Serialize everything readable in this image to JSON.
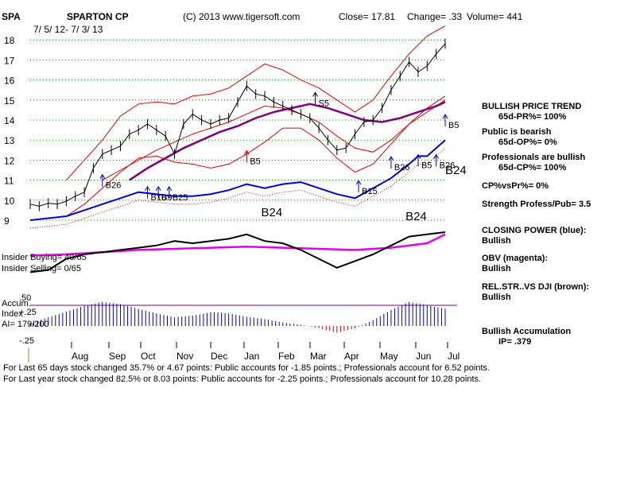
{
  "header": {
    "ticker": "SPA",
    "company": "SPARTON CP",
    "copyright": "(C) 2013 www.tigersoft.com",
    "close": "Close=  17.81",
    "change": "Change= .33",
    "volume": "Volume= 441",
    "date_range": "7/ 5/ 12- 7/ 3/ 13"
  },
  "left_labels": {
    "insider_buying": "Insider Buying= 40/65",
    "insider_selling": "Insider Selling= 0/65",
    "accum_label": "Accum.",
    "index_label": "Index",
    "ai": "AI= 179/200"
  },
  "right_panel": {
    "trend_title": "BULLISH PRICE TREND",
    "pr": "65d-PR%= 100%",
    "public": "Public is bearish",
    "op": "65d-OP%= 0%",
    "professionals": "Professionals are bullish",
    "cp": "65d-CP%= 100%",
    "cp_vs_pr": "CP%vsPr%=  0%",
    "strength": "Strength Profess/Pub= 3.5",
    "closing_power": "CLOSING POWER (blue):",
    "closing_power_val": "Bullish",
    "obv": "OBV (magenta):",
    "obv_val": "Bullish",
    "relstr": "REL.STR..VS DJI (brown):",
    "relstr_val": "Bullish",
    "accum": "Bullish Accumulation",
    "ip": "IP=  .379"
  },
  "footer": {
    "line1": "For Last 65 days stock changed  35.7% or  4.67 points:  Public accounts for -1.85 points.;  Professionals account for  6.52 points.",
    "line2": "For Last year stock changed  82.5% or  8.03 points:  Public accounts for -2.25 points.;  Professionals account for  10.28 points."
  },
  "colors": {
    "price": "#000000",
    "band": "#e60000",
    "ma": "#800080",
    "closing_power": "#0000e6",
    "obv": "#e600e6",
    "relstr": "#000000",
    "accumulation": "#0000cc",
    "buy_signal": "#0000cc",
    "sell_signal": "#cc0000",
    "grid": "#008000"
  },
  "chart_data": {
    "type": "line",
    "title": "SPARTON CP",
    "price_axis": {
      "ticks": [
        9,
        10,
        11,
        12,
        13,
        14,
        15,
        16,
        17,
        18
      ],
      "ylim": [
        8.6,
        18.6
      ]
    },
    "months": [
      "Aug",
      "Sep",
      "Oct",
      "Nov",
      "Dec",
      "Jan",
      "Feb",
      "Mar",
      "Apr",
      "May",
      "Jun",
      "Jul"
    ],
    "accum_axis": {
      "ticks": [
        ".50",
        "+.25",
        "-.25"
      ],
      "ylim": [
        -0.3,
        0.55
      ]
    },
    "price_series": [
      {
        "x": 0,
        "y": 9.8
      },
      {
        "x": 5,
        "y": 9.7
      },
      {
        "x": 10,
        "y": 9.85
      },
      {
        "x": 15,
        "y": 9.8
      },
      {
        "x": 20,
        "y": 9.95
      },
      {
        "x": 25,
        "y": 10.2
      },
      {
        "x": 30,
        "y": 10.4
      },
      {
        "x": 35,
        "y": 11.6
      },
      {
        "x": 40,
        "y": 12.3
      },
      {
        "x": 45,
        "y": 12.5
      },
      {
        "x": 50,
        "y": 12.7
      },
      {
        "x": 55,
        "y": 13.3
      },
      {
        "x": 60,
        "y": 13.5
      },
      {
        "x": 65,
        "y": 13.8
      },
      {
        "x": 70,
        "y": 13.5
      },
      {
        "x": 75,
        "y": 13.2
      },
      {
        "x": 80,
        "y": 12.3
      },
      {
        "x": 85,
        "y": 13.8
      },
      {
        "x": 90,
        "y": 14.3
      },
      {
        "x": 95,
        "y": 14.0
      },
      {
        "x": 100,
        "y": 13.8
      },
      {
        "x": 105,
        "y": 14.0
      },
      {
        "x": 110,
        "y": 14.1
      },
      {
        "x": 115,
        "y": 14.9
      },
      {
        "x": 120,
        "y": 15.7
      },
      {
        "x": 125,
        "y": 15.3
      },
      {
        "x": 130,
        "y": 15.2
      },
      {
        "x": 135,
        "y": 14.9
      },
      {
        "x": 140,
        "y": 14.7
      },
      {
        "x": 145,
        "y": 14.5
      },
      {
        "x": 150,
        "y": 14.3
      },
      {
        "x": 155,
        "y": 14.1
      },
      {
        "x": 160,
        "y": 13.6
      },
      {
        "x": 165,
        "y": 13.0
      },
      {
        "x": 170,
        "y": 12.5
      },
      {
        "x": 175,
        "y": 12.6
      },
      {
        "x": 180,
        "y": 13.3
      },
      {
        "x": 185,
        "y": 13.9
      },
      {
        "x": 190,
        "y": 14.0
      },
      {
        "x": 195,
        "y": 14.6
      },
      {
        "x": 200,
        "y": 15.5
      },
      {
        "x": 205,
        "y": 16.2
      },
      {
        "x": 210,
        "y": 16.9
      },
      {
        "x": 215,
        "y": 16.4
      },
      {
        "x": 220,
        "y": 16.7
      },
      {
        "x": 225,
        "y": 17.3
      },
      {
        "x": 230,
        "y": 17.81
      }
    ],
    "upper_band": [
      {
        "x": 20,
        "y": 11.0
      },
      {
        "x": 30,
        "y": 12.0
      },
      {
        "x": 40,
        "y": 13.0
      },
      {
        "x": 50,
        "y": 14.2
      },
      {
        "x": 60,
        "y": 14.8
      },
      {
        "x": 70,
        "y": 14.9
      },
      {
        "x": 80,
        "y": 14.8
      },
      {
        "x": 90,
        "y": 15.2
      },
      {
        "x": 100,
        "y": 15.3
      },
      {
        "x": 110,
        "y": 15.6
      },
      {
        "x": 120,
        "y": 16.2
      },
      {
        "x": 130,
        "y": 16.8
      },
      {
        "x": 140,
        "y": 16.5
      },
      {
        "x": 150,
        "y": 16.0
      },
      {
        "x": 160,
        "y": 15.6
      },
      {
        "x": 170,
        "y": 15.0
      },
      {
        "x": 180,
        "y": 14.4
      },
      {
        "x": 190,
        "y": 15.0
      },
      {
        "x": 200,
        "y": 16.2
      },
      {
        "x": 210,
        "y": 17.3
      },
      {
        "x": 220,
        "y": 18.2
      },
      {
        "x": 230,
        "y": 18.7
      }
    ],
    "lower_band": [
      {
        "x": 20,
        "y": 9.2
      },
      {
        "x": 30,
        "y": 9.8
      },
      {
        "x": 40,
        "y": 10.6
      },
      {
        "x": 50,
        "y": 11.4
      },
      {
        "x": 60,
        "y": 12.1
      },
      {
        "x": 70,
        "y": 12.2
      },
      {
        "x": 80,
        "y": 11.9
      },
      {
        "x": 90,
        "y": 11.8
      },
      {
        "x": 100,
        "y": 11.6
      },
      {
        "x": 110,
        "y": 11.8
      },
      {
        "x": 120,
        "y": 12.3
      },
      {
        "x": 130,
        "y": 12.9
      },
      {
        "x": 140,
        "y": 13.6
      },
      {
        "x": 150,
        "y": 13.6
      },
      {
        "x": 160,
        "y": 13.0
      },
      {
        "x": 170,
        "y": 12.1
      },
      {
        "x": 180,
        "y": 11.4
      },
      {
        "x": 190,
        "y": 11.8
      },
      {
        "x": 200,
        "y": 12.8
      },
      {
        "x": 210,
        "y": 13.8
      },
      {
        "x": 220,
        "y": 14.6
      },
      {
        "x": 230,
        "y": 15.2
      }
    ],
    "inner_red_line": [
      {
        "x": 40,
        "y": 11.0
      },
      {
        "x": 50,
        "y": 11.5
      },
      {
        "x": 60,
        "y": 12.0
      },
      {
        "x": 70,
        "y": 12.5
      },
      {
        "x": 80,
        "y": 12.9
      },
      {
        "x": 90,
        "y": 13.3
      },
      {
        "x": 100,
        "y": 13.6
      },
      {
        "x": 110,
        "y": 13.9
      },
      {
        "x": 120,
        "y": 14.3
      },
      {
        "x": 130,
        "y": 14.7
      },
      {
        "x": 140,
        "y": 14.6
      },
      {
        "x": 150,
        "y": 14.3
      },
      {
        "x": 160,
        "y": 13.9
      },
      {
        "x": 170,
        "y": 13.2
      },
      {
        "x": 180,
        "y": 12.6
      },
      {
        "x": 190,
        "y": 12.4
      },
      {
        "x": 200,
        "y": 13.0
      },
      {
        "x": 210,
        "y": 13.8
      },
      {
        "x": 220,
        "y": 14.4
      },
      {
        "x": 230,
        "y": 15.0
      }
    ],
    "ma_series": [
      {
        "x": 55,
        "y": 11.0
      },
      {
        "x": 65,
        "y": 11.6
      },
      {
        "x": 75,
        "y": 12.1
      },
      {
        "x": 85,
        "y": 12.6
      },
      {
        "x": 95,
        "y": 13.0
      },
      {
        "x": 105,
        "y": 13.4
      },
      {
        "x": 115,
        "y": 13.7
      },
      {
        "x": 125,
        "y": 14.1
      },
      {
        "x": 135,
        "y": 14.4
      },
      {
        "x": 145,
        "y": 14.6
      },
      {
        "x": 155,
        "y": 14.8
      },
      {
        "x": 165,
        "y": 14.6
      },
      {
        "x": 175,
        "y": 14.3
      },
      {
        "x": 185,
        "y": 14.0
      },
      {
        "x": 195,
        "y": 13.9
      },
      {
        "x": 205,
        "y": 14.1
      },
      {
        "x": 215,
        "y": 14.4
      },
      {
        "x": 225,
        "y": 14.7
      },
      {
        "x": 230,
        "y": 14.9
      }
    ],
    "closing_power_series": [
      {
        "x": 0,
        "y": 9.0
      },
      {
        "x": 10,
        "y": 9.1
      },
      {
        "x": 20,
        "y": 9.2
      },
      {
        "x": 30,
        "y": 9.5
      },
      {
        "x": 40,
        "y": 9.8
      },
      {
        "x": 50,
        "y": 10.1
      },
      {
        "x": 60,
        "y": 10.4
      },
      {
        "x": 70,
        "y": 10.3
      },
      {
        "x": 80,
        "y": 10.2
      },
      {
        "x": 90,
        "y": 10.2
      },
      {
        "x": 100,
        "y": 10.3
      },
      {
        "x": 110,
        "y": 10.5
      },
      {
        "x": 120,
        "y": 10.8
      },
      {
        "x": 130,
        "y": 10.6
      },
      {
        "x": 140,
        "y": 10.8
      },
      {
        "x": 150,
        "y": 10.9
      },
      {
        "x": 160,
        "y": 10.6
      },
      {
        "x": 170,
        "y": 10.3
      },
      {
        "x": 180,
        "y": 10.1
      },
      {
        "x": 190,
        "y": 10.6
      },
      {
        "x": 200,
        "y": 11.1
      },
      {
        "x": 210,
        "y": 11.8
      },
      {
        "x": 215,
        "y": 12.2
      },
      {
        "x": 220,
        "y": 12.2
      },
      {
        "x": 225,
        "y": 12.6
      },
      {
        "x": 230,
        "y": 13.0
      }
    ],
    "obv_series": [
      {
        "x": 0,
        "y": -0.05
      },
      {
        "x": 20,
        "y": 0.0
      },
      {
        "x": 40,
        "y": 0.1
      },
      {
        "x": 60,
        "y": 0.2
      },
      {
        "x": 80,
        "y": 0.25
      },
      {
        "x": 100,
        "y": 0.3
      },
      {
        "x": 120,
        "y": 0.35
      },
      {
        "x": 140,
        "y": 0.3
      },
      {
        "x": 160,
        "y": 0.25
      },
      {
        "x": 180,
        "y": 0.2
      },
      {
        "x": 200,
        "y": 0.3
      },
      {
        "x": 220,
        "y": 0.5
      },
      {
        "x": 230,
        "y": 0.9
      }
    ],
    "relstr_series": [
      {
        "x": 0,
        "y": -0.8
      },
      {
        "x": 10,
        "y": -0.7
      },
      {
        "x": 20,
        "y": -0.2
      },
      {
        "x": 30,
        "y": 0.0
      },
      {
        "x": 40,
        "y": 0.1
      },
      {
        "x": 50,
        "y": 0.2
      },
      {
        "x": 60,
        "y": 0.3
      },
      {
        "x": 70,
        "y": 0.4
      },
      {
        "x": 80,
        "y": 0.6
      },
      {
        "x": 90,
        "y": 0.5
      },
      {
        "x": 100,
        "y": 0.6
      },
      {
        "x": 110,
        "y": 0.7
      },
      {
        "x": 120,
        "y": 0.9
      },
      {
        "x": 130,
        "y": 0.6
      },
      {
        "x": 140,
        "y": 0.5
      },
      {
        "x": 150,
        "y": 0.2
      },
      {
        "x": 160,
        "y": -0.2
      },
      {
        "x": 170,
        "y": -0.6
      },
      {
        "x": 180,
        "y": -0.3
      },
      {
        "x": 190,
        "y": 0.0
      },
      {
        "x": 200,
        "y": 0.4
      },
      {
        "x": 210,
        "y": 0.8
      },
      {
        "x": 220,
        "y": 0.9
      },
      {
        "x": 230,
        "y": 1.0
      }
    ],
    "accumulation_series": [
      {
        "x": 0,
        "y": 0.05
      },
      {
        "x": 10,
        "y": 0.15
      },
      {
        "x": 20,
        "y": 0.25
      },
      {
        "x": 30,
        "y": 0.35
      },
      {
        "x": 40,
        "y": 0.42
      },
      {
        "x": 50,
        "y": 0.38
      },
      {
        "x": 60,
        "y": 0.3
      },
      {
        "x": 70,
        "y": 0.22
      },
      {
        "x": 80,
        "y": 0.15
      },
      {
        "x": 90,
        "y": 0.18
      },
      {
        "x": 100,
        "y": 0.24
      },
      {
        "x": 110,
        "y": 0.22
      },
      {
        "x": 120,
        "y": 0.16
      },
      {
        "x": 130,
        "y": 0.12
      },
      {
        "x": 140,
        "y": 0.06
      },
      {
        "x": 150,
        "y": 0.02
      },
      {
        "x": 160,
        "y": -0.04
      },
      {
        "x": 170,
        "y": -0.12
      },
      {
        "x": 180,
        "y": -0.04
      },
      {
        "x": 190,
        "y": 0.1
      },
      {
        "x": 200,
        "y": 0.28
      },
      {
        "x": 210,
        "y": 0.42
      },
      {
        "x": 220,
        "y": 0.36
      },
      {
        "x": 230,
        "y": 0.3
      }
    ],
    "signals": [
      {
        "label": "B26",
        "x": 40,
        "y": 10.6,
        "type": "buy"
      },
      {
        "label": "B10",
        "x": 65,
        "y": 10.0,
        "type": "buy"
      },
      {
        "label": "B9",
        "x": 71,
        "y": 10.0,
        "type": "buy"
      },
      {
        "label": "B25",
        "x": 77,
        "y": 10.0,
        "type": "buy"
      },
      {
        "label": "B5",
        "x": 120,
        "y": 11.8,
        "type": "buy"
      },
      {
        "label": "S5",
        "x": 158,
        "y": 14.7,
        "type": "sell"
      },
      {
        "label": "B15",
        "x": 182,
        "y": 10.3,
        "type": "buy"
      },
      {
        "label": "B26",
        "x": 200,
        "y": 11.5,
        "type": "buy"
      },
      {
        "label": "B5",
        "x": 215,
        "y": 11.6,
        "type": "buy"
      },
      {
        "label": "B26",
        "x": 225,
        "y": 11.6,
        "type": "buy"
      },
      {
        "label": "B5",
        "x": 230,
        "y": 13.6,
        "type": "buy"
      }
    ],
    "annotations": [
      {
        "label": "B24",
        "x": 128,
        "y": 9.2
      },
      {
        "label": "B24",
        "x": 208,
        "y": 9.0
      },
      {
        "label": "B24",
        "x": 230,
        "y": 11.3
      }
    ]
  }
}
